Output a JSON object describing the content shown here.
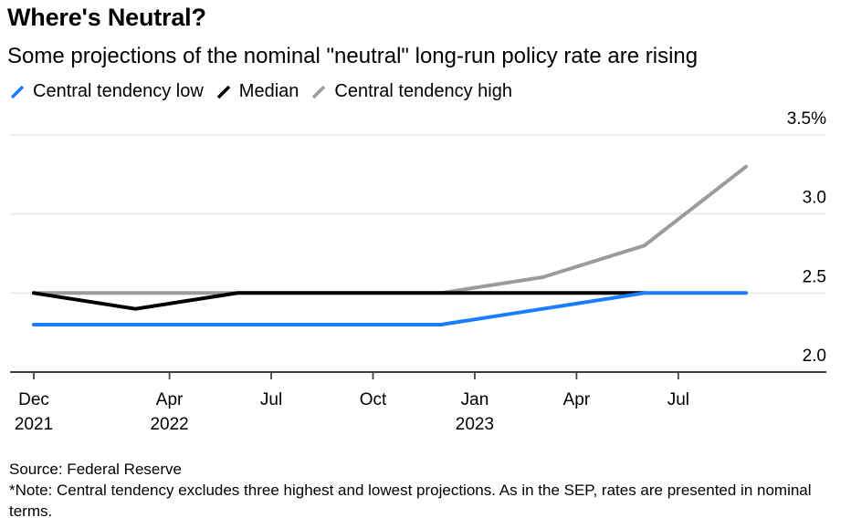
{
  "chart_data": {
    "type": "line",
    "title": "Where's Neutral?",
    "subtitle": "Some projections of the nominal \"neutral\" long-run policy rate are rising",
    "xlabel": "",
    "ylabel": "",
    "ylim": [
      2.0,
      3.5
    ],
    "y_ticks": [
      {
        "value": 2.0,
        "label": "2.0"
      },
      {
        "value": 2.5,
        "label": "2.5"
      },
      {
        "value": 3.0,
        "label": "3.0"
      },
      {
        "value": 3.5,
        "label": "3.5%"
      }
    ],
    "x_range": [
      "2021-12",
      "2023-11"
    ],
    "x_ticks": [
      {
        "month": 0,
        "label": "Dec",
        "sublabel": "2021"
      },
      {
        "month": 4,
        "label": "Apr",
        "sublabel": "2022"
      },
      {
        "month": 7,
        "label": "Jul",
        "sublabel": ""
      },
      {
        "month": 10,
        "label": "Oct",
        "sublabel": ""
      },
      {
        "month": 13,
        "label": "Jan",
        "sublabel": "2023"
      },
      {
        "month": 16,
        "label": "Apr",
        "sublabel": ""
      },
      {
        "month": 19,
        "label": "Jul",
        "sublabel": ""
      }
    ],
    "x": [
      "Dec 2021",
      "Mar 2022",
      "Jun 2022",
      "Sep 2022",
      "Dec 2022",
      "Mar 2023",
      "Jun 2023",
      "Sep 2023"
    ],
    "x_months": [
      0,
      3,
      6,
      9,
      12,
      15,
      18,
      21
    ],
    "grid": true,
    "legend_position": "top-left",
    "series": [
      {
        "name": "Central tendency high",
        "color": "#9b9b9b",
        "values": [
          2.5,
          2.5,
          2.5,
          2.5,
          2.5,
          2.6,
          2.8,
          3.3
        ]
      },
      {
        "name": "Median",
        "color": "#000000",
        "values": [
          2.5,
          2.4,
          2.5,
          2.5,
          2.5,
          2.5,
          2.5,
          null
        ]
      },
      {
        "name": "Central tendency low",
        "color": "#1a7cff",
        "values": [
          2.3,
          2.3,
          2.3,
          2.3,
          2.3,
          2.4,
          2.5,
          2.5
        ]
      }
    ]
  },
  "legend": [
    {
      "name": "Central tendency low",
      "color": "#1a7cff"
    },
    {
      "name": "Median",
      "color": "#000000"
    },
    {
      "name": "Central tendency high",
      "color": "#9b9b9b"
    }
  ],
  "footer": {
    "source": "Source: Federal Reserve",
    "note": "*Note: Central tendency excludes three highest and lowest projections. As in the SEP, rates are presented in nominal terms."
  }
}
